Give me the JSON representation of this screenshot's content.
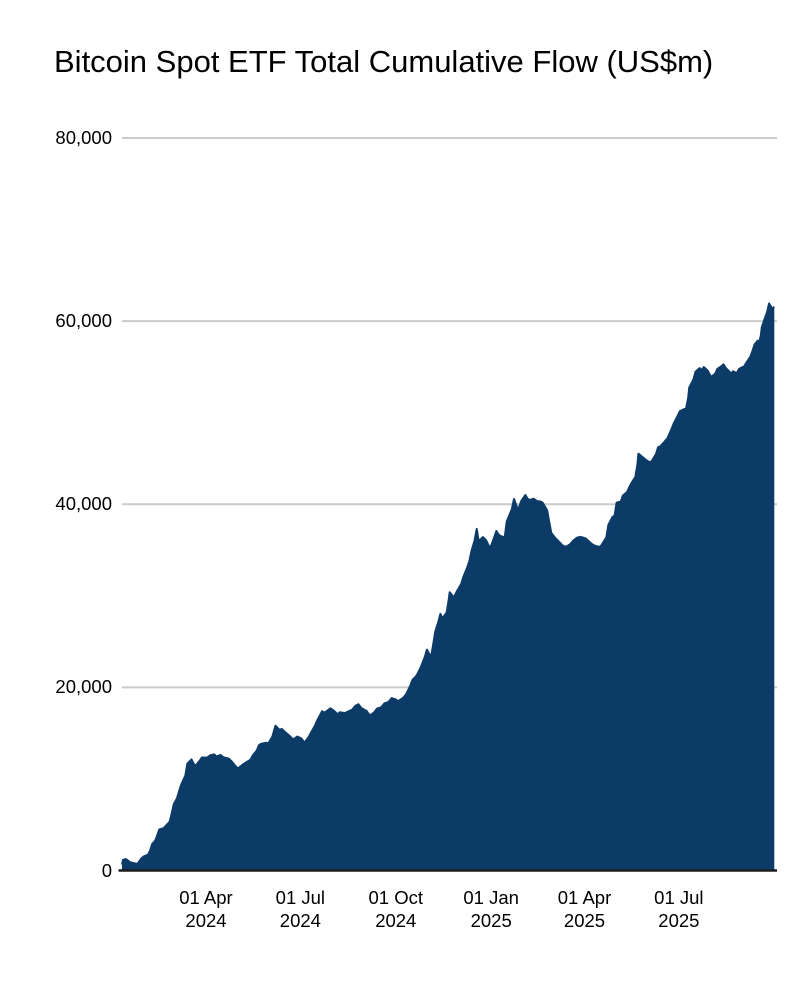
{
  "title": "Bitcoin Spot ETF Total Cumulative Flow (US$m)",
  "colors": {
    "area": "#0c3b68",
    "gridline": "#cbcbcb",
    "baseline": "#1c1c1c",
    "text": "#000000",
    "background": "#ffffff"
  },
  "y_axis": {
    "ticks": [
      {
        "value": 80000,
        "label": "80,000"
      },
      {
        "value": 60000,
        "label": "60,000"
      },
      {
        "value": 40000,
        "label": "40,000"
      },
      {
        "value": 20000,
        "label": "20,000"
      },
      {
        "value": 0,
        "label": "0"
      }
    ]
  },
  "x_axis": {
    "ticks": [
      {
        "date": "2024-04-01",
        "line1": "01 Apr",
        "line2": "2024"
      },
      {
        "date": "2024-07-01",
        "line1": "01 Jul",
        "line2": "2024"
      },
      {
        "date": "2024-10-01",
        "line1": "01 Oct",
        "line2": "2024"
      },
      {
        "date": "2025-01-01",
        "line1": "01 Jan",
        "line2": "2025"
      },
      {
        "date": "2025-04-01",
        "line1": "01 Apr",
        "line2": "2025"
      },
      {
        "date": "2025-07-01",
        "line1": "01 Jul",
        "line2": "2025"
      }
    ]
  },
  "chart_data": {
    "type": "area",
    "title": "Bitcoin Spot ETF Total Cumulative Flow (US$m)",
    "xlabel": "",
    "ylabel": "",
    "ylim": [
      0,
      80000
    ],
    "x_range": [
      "2024-01-11",
      "2025-10-01"
    ],
    "grid": true,
    "legend": false,
    "series": [
      {
        "name": "Total Cumulative Flow (US$m)",
        "color": "#0c3b68",
        "points": [
          [
            "2024-01-11",
            655
          ],
          [
            "2024-01-12",
            1160
          ],
          [
            "2024-01-15",
            1250
          ],
          [
            "2024-01-17",
            1060
          ],
          [
            "2024-01-19",
            900
          ],
          [
            "2024-01-23",
            780
          ],
          [
            "2024-01-26",
            745
          ],
          [
            "2024-01-30",
            1370
          ],
          [
            "2024-02-01",
            1540
          ],
          [
            "2024-02-05",
            1730
          ],
          [
            "2024-02-07",
            2150
          ],
          [
            "2024-02-09",
            2870
          ],
          [
            "2024-02-12",
            3250
          ],
          [
            "2024-02-14",
            3870
          ],
          [
            "2024-02-16",
            4480
          ],
          [
            "2024-02-20",
            4620
          ],
          [
            "2024-02-22",
            4850
          ],
          [
            "2024-02-26",
            5330
          ],
          [
            "2024-02-28",
            6280
          ],
          [
            "2024-03-01",
            7250
          ],
          [
            "2024-03-04",
            7900
          ],
          [
            "2024-03-06",
            8620
          ],
          [
            "2024-03-08",
            9350
          ],
          [
            "2024-03-12",
            10350
          ],
          [
            "2024-03-14",
            11650
          ],
          [
            "2024-03-18",
            12130
          ],
          [
            "2024-03-20",
            11680
          ],
          [
            "2024-03-22",
            11420
          ],
          [
            "2024-03-26",
            12010
          ],
          [
            "2024-03-28",
            12340
          ],
          [
            "2024-04-02",
            12330
          ],
          [
            "2024-04-05",
            12570
          ],
          [
            "2024-04-09",
            12680
          ],
          [
            "2024-04-11",
            12450
          ],
          [
            "2024-04-15",
            12620
          ],
          [
            "2024-04-18",
            12350
          ],
          [
            "2024-04-23",
            12220
          ],
          [
            "2024-04-26",
            11880
          ],
          [
            "2024-04-30",
            11330
          ],
          [
            "2024-05-02",
            11160
          ],
          [
            "2024-05-06",
            11520
          ],
          [
            "2024-05-09",
            11760
          ],
          [
            "2024-05-14",
            12110
          ],
          [
            "2024-05-16",
            12560
          ],
          [
            "2024-05-20",
            13110
          ],
          [
            "2024-05-22",
            13680
          ],
          [
            "2024-05-24",
            13840
          ],
          [
            "2024-05-29",
            13960
          ],
          [
            "2024-05-31",
            13870
          ],
          [
            "2024-06-04",
            14620
          ],
          [
            "2024-06-06",
            15420
          ],
          [
            "2024-06-07",
            15810
          ],
          [
            "2024-06-11",
            15340
          ],
          [
            "2024-06-13",
            15470
          ],
          [
            "2024-06-17",
            15050
          ],
          [
            "2024-06-20",
            14750
          ],
          [
            "2024-06-24",
            14330
          ],
          [
            "2024-06-26",
            14460
          ],
          [
            "2024-06-28",
            14630
          ],
          [
            "2024-07-02",
            14420
          ],
          [
            "2024-07-05",
            13970
          ],
          [
            "2024-07-09",
            14580
          ],
          [
            "2024-07-11",
            15000
          ],
          [
            "2024-07-15",
            15800
          ],
          [
            "2024-07-17",
            16350
          ],
          [
            "2024-07-19",
            16750
          ],
          [
            "2024-07-22",
            17400
          ],
          [
            "2024-07-24",
            17230
          ],
          [
            "2024-07-26",
            17380
          ],
          [
            "2024-07-30",
            17720
          ],
          [
            "2024-08-02",
            17480
          ],
          [
            "2024-08-06",
            17060
          ],
          [
            "2024-08-08",
            17290
          ],
          [
            "2024-08-13",
            17190
          ],
          [
            "2024-08-16",
            17370
          ],
          [
            "2024-08-20",
            17560
          ],
          [
            "2024-08-23",
            17980
          ],
          [
            "2024-08-26",
            18160
          ],
          [
            "2024-08-29",
            17740
          ],
          [
            "2024-09-03",
            17420
          ],
          [
            "2024-09-06",
            16920
          ],
          [
            "2024-09-10",
            17260
          ],
          [
            "2024-09-13",
            17680
          ],
          [
            "2024-09-17",
            17830
          ],
          [
            "2024-09-20",
            18250
          ],
          [
            "2024-09-24",
            18400
          ],
          [
            "2024-09-27",
            18830
          ],
          [
            "2024-10-01",
            18690
          ],
          [
            "2024-10-03",
            18480
          ],
          [
            "2024-10-08",
            18840
          ],
          [
            "2024-10-11",
            19240
          ],
          [
            "2024-10-15",
            20180
          ],
          [
            "2024-10-17",
            20820
          ],
          [
            "2024-10-21",
            21280
          ],
          [
            "2024-10-23",
            21710
          ],
          [
            "2024-10-25",
            22180
          ],
          [
            "2024-10-29",
            23320
          ],
          [
            "2024-10-31",
            24130
          ],
          [
            "2024-11-04",
            23300
          ],
          [
            "2024-11-06",
            24620
          ],
          [
            "2024-11-08",
            26070
          ],
          [
            "2024-11-11",
            27150
          ],
          [
            "2024-11-13",
            28020
          ],
          [
            "2024-11-15",
            27540
          ],
          [
            "2024-11-19",
            28170
          ],
          [
            "2024-11-21",
            29560
          ],
          [
            "2024-11-22",
            30380
          ],
          [
            "2024-11-26",
            29830
          ],
          [
            "2024-11-29",
            30510
          ],
          [
            "2024-12-03",
            31280
          ],
          [
            "2024-12-05",
            32010
          ],
          [
            "2024-12-09",
            33130
          ],
          [
            "2024-12-11",
            33810
          ],
          [
            "2024-12-13",
            34910
          ],
          [
            "2024-12-16",
            36040
          ],
          [
            "2024-12-18",
            37310
          ],
          [
            "2024-12-20",
            35970
          ],
          [
            "2024-12-24",
            36410
          ],
          [
            "2024-12-27",
            36080
          ],
          [
            "2024-12-31",
            35180
          ],
          [
            "2025-01-03",
            36080
          ],
          [
            "2025-01-06",
            37080
          ],
          [
            "2025-01-08",
            36720
          ],
          [
            "2025-01-10",
            36530
          ],
          [
            "2025-01-14",
            36380
          ],
          [
            "2025-01-16",
            38110
          ],
          [
            "2025-01-21",
            39480
          ],
          [
            "2025-01-23",
            40570
          ],
          [
            "2025-01-27",
            39360
          ],
          [
            "2025-01-30",
            40340
          ],
          [
            "2025-02-03",
            41010
          ],
          [
            "2025-02-05",
            40620
          ],
          [
            "2025-02-07",
            40450
          ],
          [
            "2025-02-11",
            40610
          ],
          [
            "2025-02-14",
            40360
          ],
          [
            "2025-02-18",
            40290
          ],
          [
            "2025-02-20",
            40120
          ],
          [
            "2025-02-24",
            39320
          ],
          [
            "2025-02-26",
            38080
          ],
          [
            "2025-02-28",
            36870
          ],
          [
            "2025-03-04",
            36290
          ],
          [
            "2025-03-06",
            36070
          ],
          [
            "2025-03-11",
            35480
          ],
          [
            "2025-03-14",
            35340
          ],
          [
            "2025-03-18",
            35610
          ],
          [
            "2025-03-21",
            36010
          ],
          [
            "2025-03-25",
            36360
          ],
          [
            "2025-03-28",
            36430
          ],
          [
            "2025-04-02",
            36280
          ],
          [
            "2025-04-04",
            36070
          ],
          [
            "2025-04-08",
            35660
          ],
          [
            "2025-04-11",
            35470
          ],
          [
            "2025-04-15",
            35330
          ],
          [
            "2025-04-17",
            35460
          ],
          [
            "2025-04-22",
            36380
          ],
          [
            "2025-04-24",
            37760
          ],
          [
            "2025-04-28",
            38610
          ],
          [
            "2025-04-30",
            38760
          ],
          [
            "2025-05-02",
            40180
          ],
          [
            "2025-05-06",
            40290
          ],
          [
            "2025-05-08",
            40960
          ],
          [
            "2025-05-12",
            41320
          ],
          [
            "2025-05-14",
            41820
          ],
          [
            "2025-05-16",
            42270
          ],
          [
            "2025-05-20",
            42980
          ],
          [
            "2025-05-22",
            44310
          ],
          [
            "2025-05-23",
            45520
          ],
          [
            "2025-05-28",
            45060
          ],
          [
            "2025-05-30",
            44870
          ],
          [
            "2025-06-03",
            44560
          ],
          [
            "2025-06-05",
            44730
          ],
          [
            "2025-06-09",
            45510
          ],
          [
            "2025-06-11",
            46230
          ],
          [
            "2025-06-13",
            46320
          ],
          [
            "2025-06-17",
            46820
          ],
          [
            "2025-06-20",
            47230
          ],
          [
            "2025-06-24",
            48230
          ],
          [
            "2025-06-26",
            48820
          ],
          [
            "2025-06-30",
            49680
          ],
          [
            "2025-07-02",
            50160
          ],
          [
            "2025-07-08",
            50480
          ],
          [
            "2025-07-10",
            51630
          ],
          [
            "2025-07-11",
            52730
          ],
          [
            "2025-07-15",
            53630
          ],
          [
            "2025-07-17",
            54480
          ],
          [
            "2025-07-21",
            54870
          ],
          [
            "2025-07-23",
            54660
          ],
          [
            "2025-07-25",
            54980
          ],
          [
            "2025-07-29",
            54560
          ],
          [
            "2025-08-01",
            53900
          ],
          [
            "2025-08-05",
            54270
          ],
          [
            "2025-08-07",
            54760
          ],
          [
            "2025-08-11",
            55080
          ],
          [
            "2025-08-13",
            55280
          ],
          [
            "2025-08-15",
            54910
          ],
          [
            "2025-08-19",
            54460
          ],
          [
            "2025-08-20",
            54160
          ],
          [
            "2025-08-22",
            54520
          ],
          [
            "2025-08-26",
            54330
          ],
          [
            "2025-08-28",
            54780
          ],
          [
            "2025-09-02",
            55070
          ],
          [
            "2025-09-04",
            55460
          ],
          [
            "2025-09-08",
            56110
          ],
          [
            "2025-09-10",
            56760
          ],
          [
            "2025-09-12",
            57460
          ],
          [
            "2025-09-15",
            57860
          ],
          [
            "2025-09-16",
            57480
          ],
          [
            "2025-09-18",
            58420
          ],
          [
            "2025-09-19",
            59340
          ],
          [
            "2025-09-22",
            60330
          ],
          [
            "2025-09-24",
            60950
          ],
          [
            "2025-09-26",
            61920
          ],
          [
            "2025-09-29",
            61350
          ],
          [
            "2025-10-01",
            61560
          ]
        ]
      }
    ]
  }
}
